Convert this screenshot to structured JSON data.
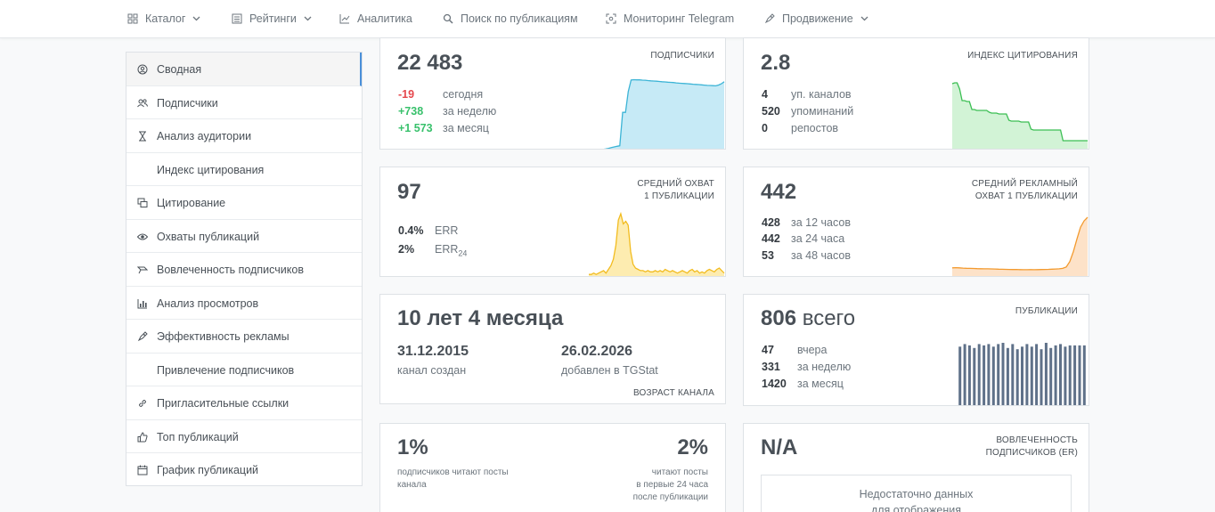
{
  "nav": [
    {
      "label": "Каталог",
      "icon": "grid-icon",
      "caret": true
    },
    {
      "label": "Рейтинги",
      "icon": "list-icon",
      "caret": true
    },
    {
      "label": "Аналитика",
      "icon": "chart-line-icon",
      "caret": false
    },
    {
      "label": "Поиск по публикациям",
      "icon": "search-icon",
      "caret": false
    },
    {
      "label": "Мониторинг Telegram",
      "icon": "monitor-icon",
      "caret": false
    },
    {
      "label": "Продвижение",
      "icon": "rocket-icon",
      "caret": true
    }
  ],
  "sidebar": {
    "items": [
      {
        "label": "Сводная",
        "icon": "user-circle-icon",
        "active": true
      },
      {
        "label": "Подписчики",
        "icon": "users-icon",
        "active": false
      },
      {
        "label": "Анализ аудитории",
        "icon": "hourglass-icon",
        "active": false
      },
      {
        "label": "Индекс цитирования",
        "icon": "",
        "active": false
      },
      {
        "label": "Цитирование",
        "icon": "quote-icon",
        "active": false
      },
      {
        "label": "Охваты публикаций",
        "icon": "eye-icon",
        "active": false
      },
      {
        "label": "Вовлеченность подписчиков",
        "icon": "engagement-icon",
        "active": false
      },
      {
        "label": "Анализ просмотров",
        "icon": "bar-chart-icon",
        "active": false
      },
      {
        "label": "Эффективность рекламы",
        "icon": "megaphone-icon",
        "active": false
      },
      {
        "label": "Привлечение подписчиков",
        "icon": "",
        "active": false
      },
      {
        "label": "Пригласительные ссылки",
        "icon": "link-icon",
        "active": false
      },
      {
        "label": "Топ публикаций",
        "icon": "thumbs-up-icon",
        "active": false
      },
      {
        "label": "График публикаций",
        "icon": "calendar-icon",
        "active": false
      }
    ]
  },
  "subscribers": {
    "value": "22 483",
    "title": "ПОДПИСЧИКИ",
    "rows": [
      {
        "value": "-19",
        "label": "сегодня",
        "tone": "neg"
      },
      {
        "value": "+738",
        "label": "за неделю",
        "tone": "pos"
      },
      {
        "value": "+1 573",
        "label": "за месяц",
        "tone": "pos"
      }
    ],
    "chart_data": {
      "type": "area",
      "values": [
        0,
        0,
        0,
        0,
        0,
        0.2,
        0.7,
        1.5,
        2.4,
        3.2,
        4.0,
        4.6,
        45,
        45,
        70,
        84,
        84.5,
        84.3,
        84.2,
        83.9,
        83.8,
        83.4,
        83.1,
        82.9,
        82.6,
        82.3,
        82,
        81.8,
        81.5,
        81.2,
        81.0,
        80.6,
        80.3,
        80.0,
        79.8,
        79.6,
        79.3,
        79.0,
        78.8,
        78.5,
        78.2,
        77.9,
        77.6,
        77.5,
        77.2,
        77.0,
        78.0,
        79.5,
        82
      ]
    },
    "colors": {
      "fill": "#c6eaf6",
      "stroke": "#3cb4d6"
    }
  },
  "citation": {
    "value": "2.8",
    "title": "ИНДЕКС ЦИТИРОВАНИЯ",
    "rows": [
      {
        "value": "4",
        "label": "уп. каналов"
      },
      {
        "value": "520",
        "label": "упоминаний"
      },
      {
        "value": "0",
        "label": "репостов"
      }
    ],
    "chart_data": {
      "type": "area",
      "values": [
        74,
        75,
        75,
        68,
        55,
        55,
        54,
        54,
        45,
        45,
        44,
        44,
        44,
        44,
        44,
        42,
        41,
        41,
        41,
        40,
        40,
        40,
        40,
        33,
        32,
        32,
        32,
        32,
        31,
        31,
        31,
        31,
        23,
        22,
        22,
        22,
        22,
        22,
        22,
        22,
        22,
        22,
        22,
        22,
        22,
        10,
        10,
        10,
        10,
        10,
        10,
        10,
        10,
        10,
        10,
        10
      ]
    },
    "colors": {
      "fill": "#d2f3d6",
      "stroke": "#3cbf54"
    }
  },
  "reach": {
    "value": "97",
    "title_line1": "СРЕДНИЙ ОХВАТ",
    "title_line2": "1 ПУБЛИКАЦИИ",
    "rows": [
      {
        "value": "0.4%",
        "label": "ERR",
        "sub": ""
      },
      {
        "value": "2%",
        "label": "ERR",
        "sub": "24"
      }
    ],
    "chart_data": {
      "type": "area",
      "values": [
        2,
        2,
        3,
        2,
        3,
        4,
        5,
        3,
        6,
        9,
        14,
        25,
        45,
        50,
        42,
        44,
        41,
        20,
        10,
        7,
        6,
        5,
        5,
        4,
        5,
        4,
        4,
        5,
        4,
        5,
        4,
        6,
        5,
        4,
        5,
        4,
        3,
        4,
        5,
        4,
        3,
        5,
        6,
        4,
        5,
        3,
        4,
        3,
        5,
        6,
        5,
        4,
        6,
        7,
        5,
        3
      ]
    },
    "colors": {
      "fill": "#fdecb0",
      "stroke": "#f2bc1f"
    }
  },
  "ad_reach": {
    "value": "442",
    "title_line1": "СРЕДНИЙ РЕКЛАМНЫЙ",
    "title_line2": "ОХВАТ 1 ПУБЛИКАЦИИ",
    "rows": [
      {
        "value": "428",
        "label": "за 12 часов"
      },
      {
        "value": "442",
        "label": "за 24 часа"
      },
      {
        "value": "53",
        "label": "за 48 часов"
      }
    ],
    "chart_data": {
      "type": "area",
      "values": [
        10,
        10.2,
        10,
        9.8,
        9.6,
        9.5,
        9.4,
        9.2,
        9.1,
        9.0,
        9.0,
        8.9,
        8.8,
        8.6,
        8.5,
        8.4,
        8.3,
        8.2,
        8.2,
        8.1,
        8.0,
        8.0,
        8.1,
        8.0,
        8.1,
        8.2,
        8.3,
        8.4,
        8.6,
        8.8,
        9.0,
        9.5,
        11,
        17,
        28,
        42,
        55,
        62,
        66
      ]
    },
    "colors": {
      "fill": "#fde2c8",
      "stroke": "#f39a2e"
    }
  },
  "age": {
    "value": "10 лет 4 месяца",
    "created_date": "31.12.2015",
    "created_label": "канал создан",
    "added_date": "26.02.2026",
    "added_label": "добавлен в TGStat",
    "footer": "ВОЗРАСТ КАНАЛА"
  },
  "publications": {
    "value": "806",
    "value_suffix": "всего",
    "title": "ПУБЛИКАЦИИ",
    "rows": [
      {
        "value": "47",
        "label": "вчера"
      },
      {
        "value": "331",
        "label": "за неделю"
      },
      {
        "value": "1420",
        "label": "за месяц"
      }
    ],
    "chart_data": {
      "type": "bar",
      "values": [
        47,
        49,
        48,
        46,
        49,
        48,
        49,
        47,
        49,
        50,
        46,
        49,
        45,
        47,
        49,
        47,
        49,
        45,
        50,
        46,
        48,
        49,
        47,
        48,
        48,
        48,
        48
      ]
    },
    "colors": {
      "bar": "#5f7189"
    }
  },
  "readers": {
    "left_value": "1%",
    "left_note_line1": "подписчиков читают посты",
    "left_note_line2": "канала",
    "right_value": "2%",
    "right_note_line1": "читают посты",
    "right_note_line2": "в первые 24 часа",
    "right_note_line3": "после публикации"
  },
  "er": {
    "value": "N/A",
    "title_line1": "ВОВЛЕЧЕННОСТЬ",
    "title_line2": "ПОДПИСЧИКОВ (ER)",
    "nodata_line1": "Недостаточно данных",
    "nodata_line2": "для отображения"
  }
}
